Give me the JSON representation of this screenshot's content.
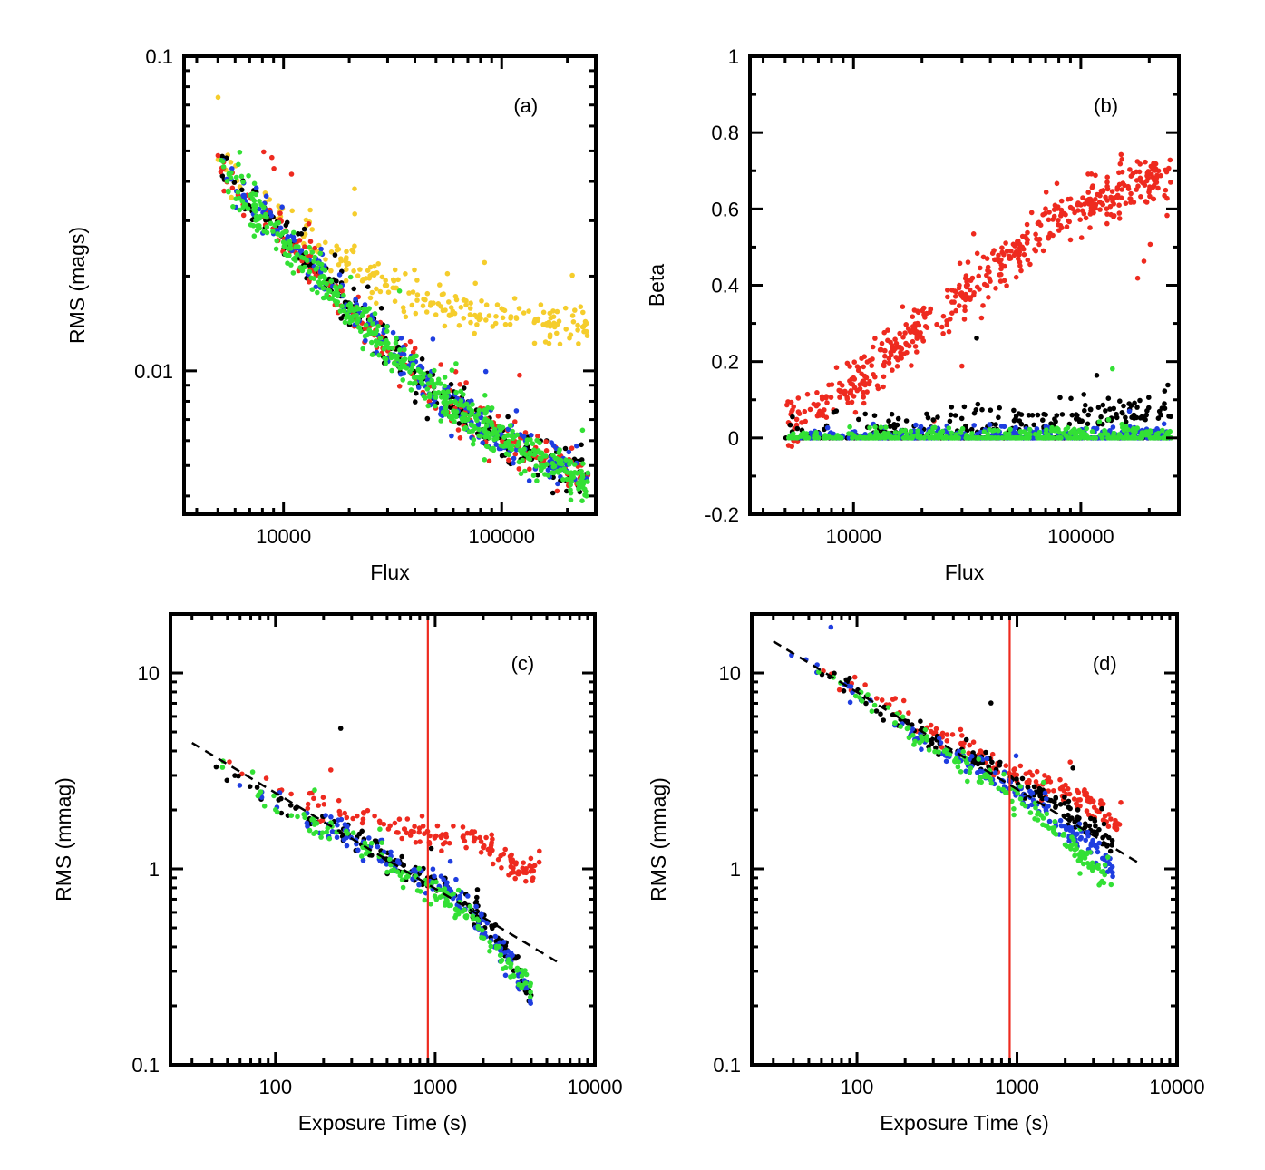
{
  "figure": {
    "colors": {
      "black": "#000000",
      "red": "#ee2a1f",
      "blue": "#1f3ee0",
      "green": "#33e035",
      "yellow": "#f5cd2c",
      "fit_line": "#000000",
      "marker_line": "#ee2a1f"
    }
  },
  "chart_data": [
    {
      "id": "a",
      "type": "scatter",
      "panel_label": "(a)",
      "xlabel": "Flux",
      "ylabel": "RMS (mags)",
      "xscale": "log",
      "yscale": "log",
      "xlim": [
        3500,
        270000
      ],
      "ylim": [
        0.0035,
        0.1
      ],
      "xticks": [
        {
          "value": 10000,
          "label": "10000"
        },
        {
          "value": 100000,
          "label": "100000"
        }
      ],
      "yticks": [
        {
          "value": 0.01,
          "label": "0.01"
        },
        {
          "value": 0.1,
          "label": "0.1"
        }
      ],
      "series": [
        {
          "name": "yellow",
          "color": "yellow",
          "description": "high noise floor sequence",
          "points_approx": [
            [
              5000,
              0.05
            ],
            [
              8000,
              0.034
            ],
            [
              15000,
              0.024
            ],
            [
              30000,
              0.019
            ],
            [
              60000,
              0.016
            ],
            [
              120000,
              0.0147
            ],
            [
              250000,
              0.0142
            ]
          ]
        },
        {
          "name": "black",
          "color": "black",
          "points_approx": [
            [
              5000,
              0.045
            ],
            [
              10000,
              0.027
            ],
            [
              20000,
              0.016
            ],
            [
              50000,
              0.0085
            ],
            [
              100000,
              0.0061
            ],
            [
              250000,
              0.0046
            ]
          ]
        },
        {
          "name": "red",
          "color": "red",
          "points_approx": [
            [
              5000,
              0.045
            ],
            [
              10000,
              0.027
            ],
            [
              20000,
              0.016
            ],
            [
              50000,
              0.0085
            ],
            [
              100000,
              0.0061
            ],
            [
              250000,
              0.0046
            ]
          ]
        },
        {
          "name": "blue",
          "color": "blue",
          "points_approx": [
            [
              5000,
              0.045
            ],
            [
              10000,
              0.027
            ],
            [
              20000,
              0.016
            ],
            [
              50000,
              0.0085
            ],
            [
              100000,
              0.0061
            ],
            [
              250000,
              0.0046
            ]
          ]
        },
        {
          "name": "green",
          "color": "green",
          "points_approx": [
            [
              5000,
              0.044
            ],
            [
              10000,
              0.026
            ],
            [
              20000,
              0.0155
            ],
            [
              50000,
              0.0083
            ],
            [
              100000,
              0.006
            ],
            [
              250000,
              0.0044
            ]
          ]
        }
      ]
    },
    {
      "id": "b",
      "type": "scatter",
      "panel_label": "(b)",
      "xlabel": "Flux",
      "ylabel": "Beta",
      "xscale": "log",
      "yscale": "linear",
      "xlim": [
        3500,
        270000
      ],
      "ylim": [
        -0.2,
        1.0
      ],
      "xticks": [
        {
          "value": 10000,
          "label": "10000"
        },
        {
          "value": 100000,
          "label": "100000"
        }
      ],
      "yticks": [
        {
          "value": -0.2,
          "label": "-0.2"
        },
        {
          "value": 0,
          "label": "0"
        },
        {
          "value": 0.2,
          "label": "0.2"
        },
        {
          "value": 0.4,
          "label": "0.4"
        },
        {
          "value": 0.6,
          "label": "0.6"
        },
        {
          "value": 0.8,
          "label": "0.8"
        },
        {
          "value": 1.0,
          "label": "1"
        }
      ],
      "series": [
        {
          "name": "red",
          "color": "red",
          "points_approx": [
            [
              5000,
              0.03
            ],
            [
              8000,
              0.1
            ],
            [
              12000,
              0.18
            ],
            [
              20000,
              0.29
            ],
            [
              40000,
              0.44
            ],
            [
              70000,
              0.55
            ],
            [
              120000,
              0.63
            ],
            [
              250000,
              0.69
            ]
          ]
        },
        {
          "name": "black",
          "color": "black",
          "points_approx": [
            [
              5000,
              0.0
            ],
            [
              20000,
              0.01
            ],
            [
              60000,
              0.03
            ],
            [
              150000,
              0.05
            ],
            [
              250000,
              0.06
            ]
          ]
        },
        {
          "name": "blue",
          "color": "blue",
          "points_approx": [
            [
              5000,
              0.0
            ],
            [
              20000,
              0.01
            ],
            [
              60000,
              0.01
            ],
            [
              250000,
              0.01
            ]
          ]
        },
        {
          "name": "green",
          "color": "green",
          "points_approx": [
            [
              5000,
              0.0
            ],
            [
              20000,
              0.005
            ],
            [
              60000,
              0.01
            ],
            [
              250000,
              0.01
            ]
          ]
        }
      ]
    },
    {
      "id": "c",
      "type": "scatter",
      "panel_label": "(c)",
      "xlabel": "Exposure Time (s)",
      "ylabel": "RMS (mmag)",
      "xscale": "log",
      "yscale": "log",
      "xlim": [
        22,
        10000
      ],
      "ylim": [
        0.1,
        20
      ],
      "xticks": [
        {
          "value": 100,
          "label": "100"
        },
        {
          "value": 1000,
          "label": "1000"
        },
        {
          "value": 10000,
          "label": "10000"
        }
      ],
      "yticks": [
        {
          "value": 0.1,
          "label": "0.1"
        },
        {
          "value": 1,
          "label": "1"
        },
        {
          "value": 10,
          "label": "10"
        }
      ],
      "fit_line": {
        "style": "dashed",
        "points": [
          [
            30,
            4.4
          ],
          [
            6000,
            0.33
          ]
        ]
      },
      "vertical_line": {
        "x": 900
      },
      "series": [
        {
          "name": "red",
          "color": "red",
          "points_approx": [
            [
              30,
              4.5
            ],
            [
              60,
              3.2
            ],
            [
              100,
              2.5
            ],
            [
              200,
              2.1
            ],
            [
              400,
              1.85
            ],
            [
              700,
              1.55
            ],
            [
              1000,
              1.5
            ],
            [
              1500,
              1.42
            ],
            [
              2000,
              1.35
            ],
            [
              3000,
              1.1
            ],
            [
              3800,
              0.9
            ],
            [
              4500,
              1.1
            ]
          ]
        },
        {
          "name": "black",
          "color": "black",
          "points_approx": [
            [
              30,
              4.4
            ],
            [
              100,
              2.2
            ],
            [
              300,
              1.5
            ],
            [
              600,
              1.0
            ],
            [
              1000,
              0.85
            ],
            [
              1500,
              0.7
            ],
            [
              2000,
              0.55
            ],
            [
              3000,
              0.35
            ],
            [
              4000,
              0.22
            ]
          ]
        },
        {
          "name": "blue",
          "color": "blue",
          "points_approx": [
            [
              30,
              4.4
            ],
            [
              100,
              2.2
            ],
            [
              300,
              1.45
            ],
            [
              600,
              1.0
            ],
            [
              1000,
              0.85
            ],
            [
              1500,
              0.68
            ],
            [
              2000,
              0.52
            ],
            [
              3000,
              0.33
            ],
            [
              4000,
              0.21
            ]
          ]
        },
        {
          "name": "green",
          "color": "green",
          "points_approx": [
            [
              30,
              4.3
            ],
            [
              100,
              2.1
            ],
            [
              300,
              1.4
            ],
            [
              600,
              0.98
            ],
            [
              1000,
              0.8
            ],
            [
              1500,
              0.6
            ],
            [
              2000,
              0.48
            ],
            [
              3000,
              0.3
            ],
            [
              4000,
              0.25
            ]
          ]
        }
      ]
    },
    {
      "id": "d",
      "type": "scatter",
      "panel_label": "(d)",
      "xlabel": "Exposure Time (s)",
      "ylabel": "RMS (mmag)",
      "xscale": "log",
      "yscale": "log",
      "xlim": [
        22,
        10000
      ],
      "ylim": [
        0.1,
        20
      ],
      "xticks": [
        {
          "value": 100,
          "label": "100"
        },
        {
          "value": 1000,
          "label": "1000"
        },
        {
          "value": 10000,
          "label": "10000"
        }
      ],
      "yticks": [
        {
          "value": 0.1,
          "label": "0.1"
        },
        {
          "value": 1,
          "label": "1"
        },
        {
          "value": 10,
          "label": "10"
        }
      ],
      "fit_line": {
        "style": "dashed",
        "points": [
          [
            30,
            14.5
          ],
          [
            6000,
            1.05
          ]
        ]
      },
      "vertical_line": {
        "x": 900
      },
      "series": [
        {
          "name": "red",
          "color": "red",
          "points_approx": [
            [
              30,
              14.5
            ],
            [
              100,
              8.2
            ],
            [
              300,
              5.0
            ],
            [
              600,
              3.8
            ],
            [
              1000,
              3.0
            ],
            [
              1500,
              2.7
            ],
            [
              2000,
              2.5
            ],
            [
              3000,
              2.1
            ],
            [
              4000,
              1.7
            ],
            [
              4500,
              1.7
            ]
          ]
        },
        {
          "name": "black",
          "color": "black",
          "points_approx": [
            [
              30,
              14.5
            ],
            [
              100,
              8.0
            ],
            [
              300,
              4.5
            ],
            [
              600,
              3.5
            ],
            [
              1000,
              2.8
            ],
            [
              1500,
              2.4
            ],
            [
              2000,
              2.0
            ],
            [
              3000,
              1.6
            ],
            [
              4000,
              1.3
            ]
          ]
        },
        {
          "name": "blue",
          "color": "blue",
          "points_approx": [
            [
              30,
              14.5
            ],
            [
              100,
              8.0
            ],
            [
              300,
              4.3
            ],
            [
              600,
              3.2
            ],
            [
              1000,
              2.5
            ],
            [
              1500,
              2.0
            ],
            [
              2000,
              1.6
            ],
            [
              3000,
              1.3
            ],
            [
              4000,
              1.0
            ]
          ]
        },
        {
          "name": "green",
          "color": "green",
          "points_approx": [
            [
              30,
              14.5
            ],
            [
              100,
              8.0
            ],
            [
              300,
              4.2
            ],
            [
              600,
              3.0
            ],
            [
              1000,
              2.3
            ],
            [
              1500,
              1.8
            ],
            [
              2000,
              1.4
            ],
            [
              3000,
              1.0
            ],
            [
              4000,
              0.85
            ]
          ]
        }
      ]
    }
  ]
}
